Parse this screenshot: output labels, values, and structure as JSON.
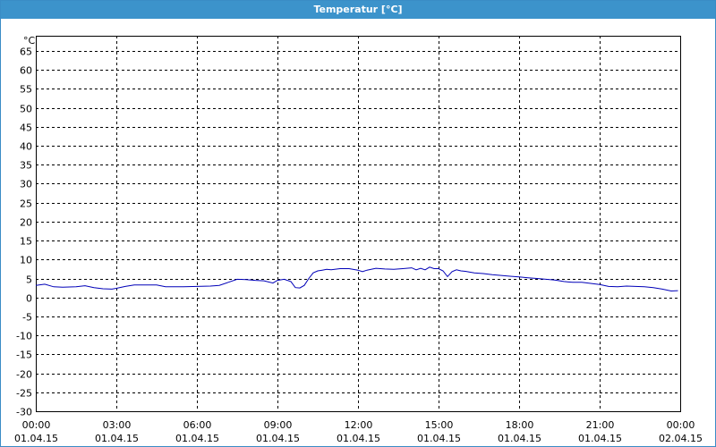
{
  "window": {
    "title": "Temperatur [°C]"
  },
  "colors": {
    "titlebar": "#3c93cb",
    "series": "#0000b8",
    "grid": "#000000"
  },
  "chart_data": {
    "type": "line",
    "title": "Temperatur [°C]",
    "ylabel": "°C",
    "xlabel": "",
    "ylim": [
      -30,
      69
    ],
    "yticks": [
      65,
      60,
      55,
      50,
      45,
      40,
      35,
      30,
      25,
      20,
      15,
      10,
      5,
      0,
      -5,
      -10,
      -15,
      -20,
      -25,
      -30
    ],
    "xlim": [
      "01.04.15 00:00",
      "02.04.15 00:00"
    ],
    "xticks": [
      {
        "time": "00:00",
        "date": "01.04.15"
      },
      {
        "time": "03:00",
        "date": "01.04.15"
      },
      {
        "time": "06:00",
        "date": "01.04.15"
      },
      {
        "time": "09:00",
        "date": "01.04.15"
      },
      {
        "time": "12:00",
        "date": "01.04.15"
      },
      {
        "time": "15:00",
        "date": "01.04.15"
      },
      {
        "time": "18:00",
        "date": "01.04.15"
      },
      {
        "time": "21:00",
        "date": "01.04.15"
      },
      {
        "time": "00:00",
        "date": "02.04.15"
      }
    ],
    "grid": true,
    "series": [
      {
        "x": [
          "00:00",
          "00:20",
          "00:40",
          "01:00",
          "01:30",
          "01:50",
          "02:10",
          "02:30",
          "02:50",
          "03:00",
          "03:20",
          "03:40",
          "04:00",
          "04:30",
          "04:50",
          "05:10",
          "05:30",
          "06:00",
          "06:30",
          "06:50",
          "07:10",
          "07:30",
          "07:50",
          "08:10",
          "08:30",
          "08:50",
          "09:00",
          "09:15",
          "09:30",
          "09:40",
          "09:50",
          "10:00",
          "10:10",
          "10:20",
          "10:30",
          "10:40",
          "10:50",
          "11:00",
          "11:20",
          "11:40",
          "12:00",
          "12:10",
          "12:20",
          "12:40",
          "13:00",
          "13:20",
          "13:40",
          "14:00",
          "14:10",
          "14:20",
          "14:30",
          "14:40",
          "14:50",
          "15:00",
          "15:10",
          "15:20",
          "15:30",
          "15:40",
          "15:50",
          "16:00",
          "16:20",
          "16:40",
          "17:00",
          "17:20",
          "17:40",
          "18:00",
          "18:20",
          "18:40",
          "19:00",
          "19:20",
          "19:40",
          "20:00",
          "20:20",
          "20:40",
          "21:00",
          "21:20",
          "21:40",
          "22:00",
          "22:20",
          "22:40",
          "23:00",
          "23:20",
          "23:40",
          "23:55"
        ],
        "values": [
          3.2,
          3.5,
          2.8,
          2.7,
          2.8,
          3.1,
          2.6,
          2.3,
          2.2,
          2.4,
          2.9,
          3.3,
          3.3,
          3.3,
          2.8,
          2.8,
          2.8,
          2.9,
          3.0,
          3.2,
          4.0,
          4.8,
          4.7,
          4.5,
          4.4,
          3.8,
          4.5,
          4.8,
          4.2,
          2.6,
          2.5,
          3.2,
          5.0,
          6.5,
          7.0,
          7.2,
          7.4,
          7.3,
          7.6,
          7.6,
          7.2,
          6.8,
          7.2,
          7.7,
          7.5,
          7.4,
          7.6,
          7.8,
          7.3,
          7.7,
          7.3,
          8.0,
          7.6,
          7.6,
          7.0,
          5.5,
          6.8,
          7.3,
          7.0,
          6.9,
          6.5,
          6.3,
          6.0,
          5.8,
          5.6,
          5.4,
          5.2,
          5.0,
          4.8,
          4.6,
          4.2,
          4.0,
          4.0,
          3.7,
          3.4,
          2.9,
          2.8,
          3.0,
          2.9,
          2.8,
          2.6,
          2.2,
          1.7,
          1.8
        ]
      }
    ]
  }
}
